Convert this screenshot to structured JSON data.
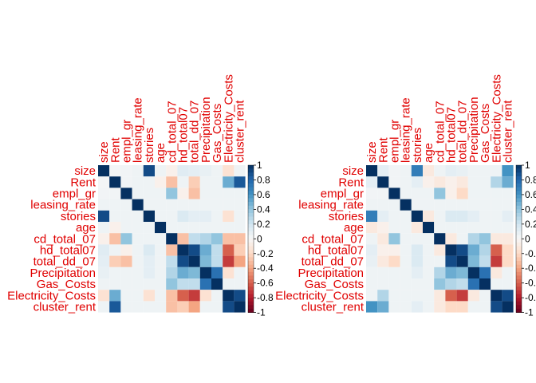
{
  "chart_data": [
    {
      "type": "heatmap",
      "title": "",
      "variables": [
        "size",
        "Rent",
        "empl_gr",
        "leasing_rate",
        "stories",
        "age",
        "cd_total_07",
        "hd_total07",
        "total_dd_07",
        "Precipitation",
        "Gas_Costs",
        "Electricity_Costs",
        "cluster_rent"
      ],
      "matrix": [
        [
          1.0,
          0.02,
          0.03,
          0.05,
          0.9,
          0.05,
          -0.05,
          0.12,
          0.1,
          0.08,
          0.05,
          -0.15,
          0.05
        ],
        [
          0.02,
          1.0,
          0.03,
          0.05,
          0.05,
          -0.05,
          -0.3,
          0.05,
          -0.25,
          0.05,
          0.05,
          0.5,
          0.85
        ],
        [
          0.03,
          0.03,
          1.0,
          0.05,
          0.05,
          0.05,
          0.4,
          -0.05,
          -0.3,
          0.05,
          0.05,
          0.05,
          0.05
        ],
        [
          0.05,
          0.05,
          0.05,
          1.0,
          0.05,
          0.05,
          0.05,
          0.05,
          0.05,
          0.05,
          0.05,
          0.05,
          0.05
        ],
        [
          0.9,
          0.05,
          0.05,
          0.05,
          1.0,
          0.05,
          0.05,
          0.15,
          0.1,
          0.1,
          0.05,
          -0.15,
          0.05
        ],
        [
          0.05,
          -0.05,
          0.05,
          0.05,
          0.05,
          1.0,
          0.05,
          0.05,
          0.05,
          0.05,
          0.05,
          0.05,
          0.05
        ],
        [
          -0.05,
          -0.3,
          0.4,
          0.05,
          0.05,
          0.05,
          1.0,
          -0.3,
          0.25,
          0.3,
          0.4,
          -0.3,
          -0.3
        ],
        [
          0.12,
          0.05,
          -0.05,
          0.05,
          0.15,
          0.05,
          -0.3,
          1.0,
          0.9,
          0.5,
          0.25,
          -0.6,
          -0.25
        ],
        [
          0.1,
          -0.25,
          -0.3,
          0.05,
          0.1,
          0.05,
          0.25,
          0.9,
          1.0,
          0.45,
          0.25,
          -0.7,
          -0.4
        ],
        [
          0.08,
          0.05,
          0.05,
          0.05,
          0.1,
          0.05,
          0.3,
          0.5,
          0.45,
          1.0,
          0.75,
          -0.15,
          0.05
        ],
        [
          0.05,
          0.05,
          0.05,
          0.05,
          0.05,
          0.05,
          0.4,
          0.25,
          0.25,
          0.75,
          1.0,
          0.05,
          0.05
        ],
        [
          -0.15,
          0.5,
          0.05,
          0.05,
          -0.15,
          0.05,
          -0.3,
          -0.6,
          -0.7,
          -0.15,
          0.05,
          1.0,
          0.9
        ],
        [
          0.05,
          0.85,
          0.05,
          0.05,
          0.05,
          0.05,
          -0.3,
          -0.25,
          -0.4,
          0.05,
          0.05,
          0.9,
          1.0
        ]
      ],
      "color_scale": {
        "ticks": [
          "1",
          "0.8",
          "0.6",
          "0.4",
          "0.2",
          "0",
          "-0.2",
          "-0.4",
          "-0.6",
          "-0.8",
          "-1"
        ],
        "range": [
          -1,
          1
        ],
        "neg_color": "#67001f",
        "mid_color": "#f7f7f7",
        "pos_color": "#053061"
      }
    },
    {
      "type": "heatmap",
      "title": "",
      "variables": [
        "size",
        "Rent",
        "empl_gr",
        "leasing_rate",
        "stories",
        "age",
        "cd_total_07",
        "hd_total07",
        "total_dd_07",
        "Precipitation",
        "Gas_Costs",
        "Electricity_Costs",
        "cluster_rent"
      ],
      "matrix": [
        [
          1.0,
          0.1,
          0.03,
          0.05,
          0.7,
          -0.1,
          0.05,
          0.1,
          0.08,
          0.05,
          0.05,
          0.05,
          0.6
        ],
        [
          0.1,
          1.0,
          0.03,
          0.05,
          0.1,
          -0.05,
          -0.1,
          -0.05,
          -0.1,
          0.05,
          0.05,
          0.3,
          0.5
        ],
        [
          0.03,
          0.03,
          1.0,
          0.05,
          0.05,
          0.05,
          0.4,
          -0.05,
          -0.2,
          0.05,
          0.05,
          0.05,
          0.05
        ],
        [
          0.05,
          0.05,
          0.05,
          1.0,
          0.05,
          0.05,
          0.05,
          0.05,
          0.05,
          0.05,
          0.05,
          0.05,
          0.05
        ],
        [
          0.7,
          0.1,
          0.05,
          0.05,
          1.0,
          -0.1,
          0.05,
          0.15,
          0.15,
          0.1,
          0.05,
          0.05,
          0.1
        ],
        [
          -0.1,
          -0.05,
          0.05,
          0.05,
          -0.1,
          1.0,
          0.05,
          0.05,
          0.05,
          0.05,
          0.05,
          0.05,
          0.05
        ],
        [
          0.05,
          -0.1,
          0.4,
          0.05,
          0.05,
          0.05,
          1.0,
          -0.1,
          0.05,
          0.3,
          0.4,
          -0.1,
          -0.1
        ],
        [
          0.1,
          -0.05,
          -0.05,
          0.05,
          0.15,
          0.05,
          -0.1,
          1.0,
          0.9,
          0.5,
          0.3,
          -0.6,
          -0.2
        ],
        [
          0.08,
          -0.1,
          -0.2,
          0.05,
          0.15,
          0.05,
          0.05,
          0.9,
          1.0,
          0.45,
          0.25,
          -0.7,
          -0.2
        ],
        [
          0.05,
          0.05,
          0.05,
          0.05,
          0.1,
          0.05,
          0.3,
          0.5,
          0.45,
          1.0,
          0.75,
          -0.1,
          0.05
        ],
        [
          0.05,
          0.05,
          0.05,
          0.05,
          0.05,
          0.05,
          0.4,
          0.3,
          0.25,
          0.75,
          1.0,
          0.05,
          0.05
        ],
        [
          0.05,
          0.3,
          0.05,
          0.05,
          0.05,
          0.05,
          -0.1,
          -0.6,
          -0.7,
          -0.1,
          0.05,
          1.0,
          0.9
        ],
        [
          0.6,
          0.5,
          0.05,
          0.05,
          0.1,
          0.05,
          -0.1,
          -0.2,
          -0.2,
          0.05,
          0.05,
          0.9,
          1.0
        ]
      ],
      "color_scale": {
        "ticks": [
          "1",
          "0.8",
          "0.6",
          "0.4",
          "0.2",
          "0",
          "-0.2",
          "-0.4",
          "-0.6",
          "-0.8",
          "-1"
        ],
        "range": [
          -1,
          1
        ],
        "neg_color": "#67001f",
        "mid_color": "#f7f7f7",
        "pos_color": "#053061"
      }
    }
  ]
}
